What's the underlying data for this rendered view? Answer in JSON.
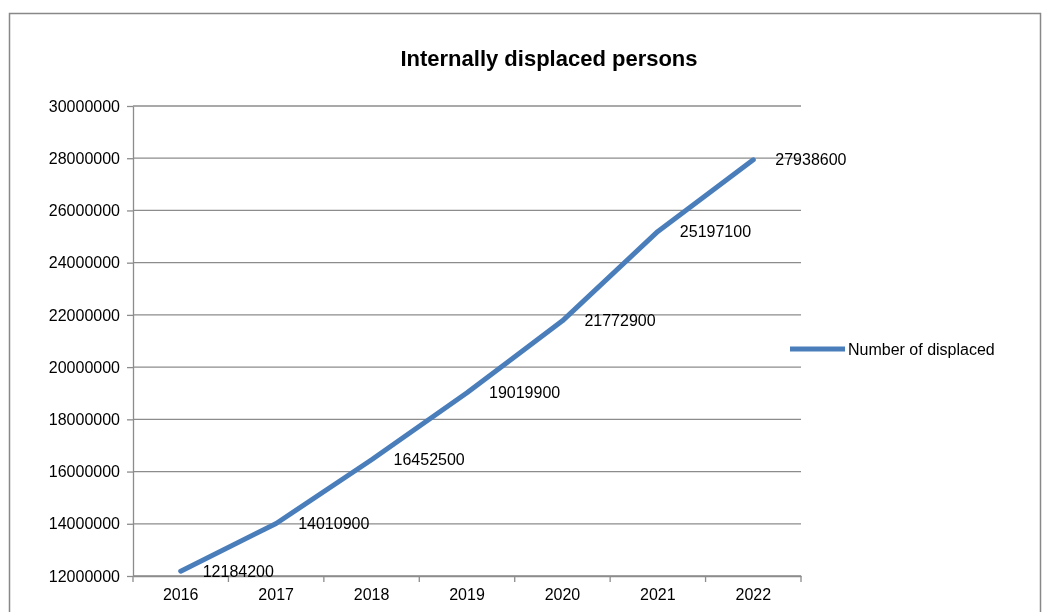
{
  "chart_data": {
    "type": "line",
    "title": "Internally displaced persons",
    "categories": [
      "2016",
      "2017",
      "2018",
      "2019",
      "2020",
      "2021",
      "2022"
    ],
    "series": [
      {
        "name": "Number of displaced",
        "color": "#4a7ebb",
        "values": [
          12184200,
          14010900,
          16452500,
          19019900,
          21772900,
          25197100,
          27938600
        ]
      }
    ],
    "ylim": [
      12000000,
      30000000
    ],
    "yticks": [
      12000000,
      14000000,
      16000000,
      18000000,
      20000000,
      22000000,
      24000000,
      26000000,
      28000000,
      30000000
    ],
    "grid": "y",
    "legend": "right",
    "data_labels": true
  }
}
